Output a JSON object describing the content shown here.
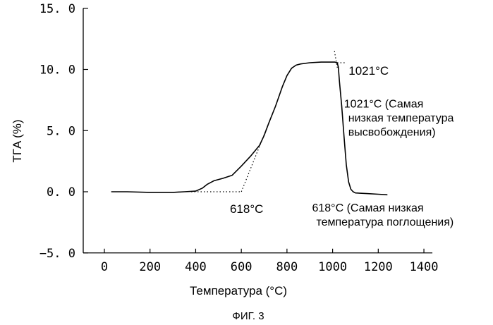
{
  "chart_data": {
    "type": "line",
    "title": "",
    "xlabel": "Температура (°C)",
    "ylabel": "TГA (%)",
    "caption": "ФИГ. 3",
    "xlim": [
      -50,
      1400
    ],
    "ylim": [
      -5.0,
      15.0
    ],
    "x_ticks": [
      0,
      200,
      400,
      600,
      800,
      1000,
      1200,
      1400
    ],
    "x_tick_labels": [
      "0",
      "200",
      "400",
      "600",
      "800",
      "1000",
      "1200",
      "1400"
    ],
    "y_ticks": [
      15.0,
      10.0,
      5.0,
      0.0,
      -5.0
    ],
    "y_tick_labels": [
      "15. 0",
      "10. 0",
      "5. 0",
      "0. 0",
      "−5. 0"
    ],
    "grid": false,
    "series": [
      {
        "x": [
          30,
          100,
          200,
          300,
          350,
          400,
          430,
          450,
          480,
          520,
          560,
          600,
          640,
          680,
          700,
          720,
          750,
          780,
          800,
          820,
          840,
          860,
          900,
          950,
          1000,
          1010,
          1020,
          1025,
          1030,
          1040,
          1050,
          1060,
          1070,
          1080,
          1090,
          1100,
          1150,
          1200,
          1240
        ],
        "y": [
          0.0,
          0.0,
          -0.05,
          -0.05,
          0.0,
          0.05,
          0.3,
          0.6,
          0.9,
          1.1,
          1.35,
          2.1,
          2.9,
          3.8,
          4.6,
          5.6,
          7.0,
          8.6,
          9.5,
          10.1,
          10.35,
          10.45,
          10.55,
          10.6,
          10.6,
          10.6,
          10.55,
          10.2,
          9.0,
          7.0,
          4.5,
          2.2,
          0.8,
          0.2,
          0.0,
          -0.1,
          -0.15,
          -0.2,
          -0.25
        ]
      }
    ],
    "guide_lines": [
      {
        "x": [
          380,
          600
        ],
        "y": [
          0.0,
          0.0
        ]
      },
      {
        "x": [
          600,
          720
        ],
        "y": [
          0.0,
          5.6
        ]
      },
      {
        "x": [
          1020,
          1055
        ],
        "y": [
          10.55,
          10.55
        ]
      },
      {
        "x": [
          1008,
          1022
        ],
        "y": [
          11.5,
          10.0
        ]
      }
    ],
    "annotations": [
      {
        "text": "618°C",
        "x": 550,
        "y": -0.8
      },
      {
        "text": "1021°C",
        "x": 1070,
        "y": 10.5
      },
      {
        "lines": [
          "1021°C (Самая",
          "низкая температура",
          "высвобождения)"
        ],
        "x": 1050,
        "y": 7.7
      },
      {
        "lines": [
          "618°C (Самая низкая",
          "температура  поглощения)"
        ],
        "x": 910,
        "y": -0.8
      }
    ]
  }
}
